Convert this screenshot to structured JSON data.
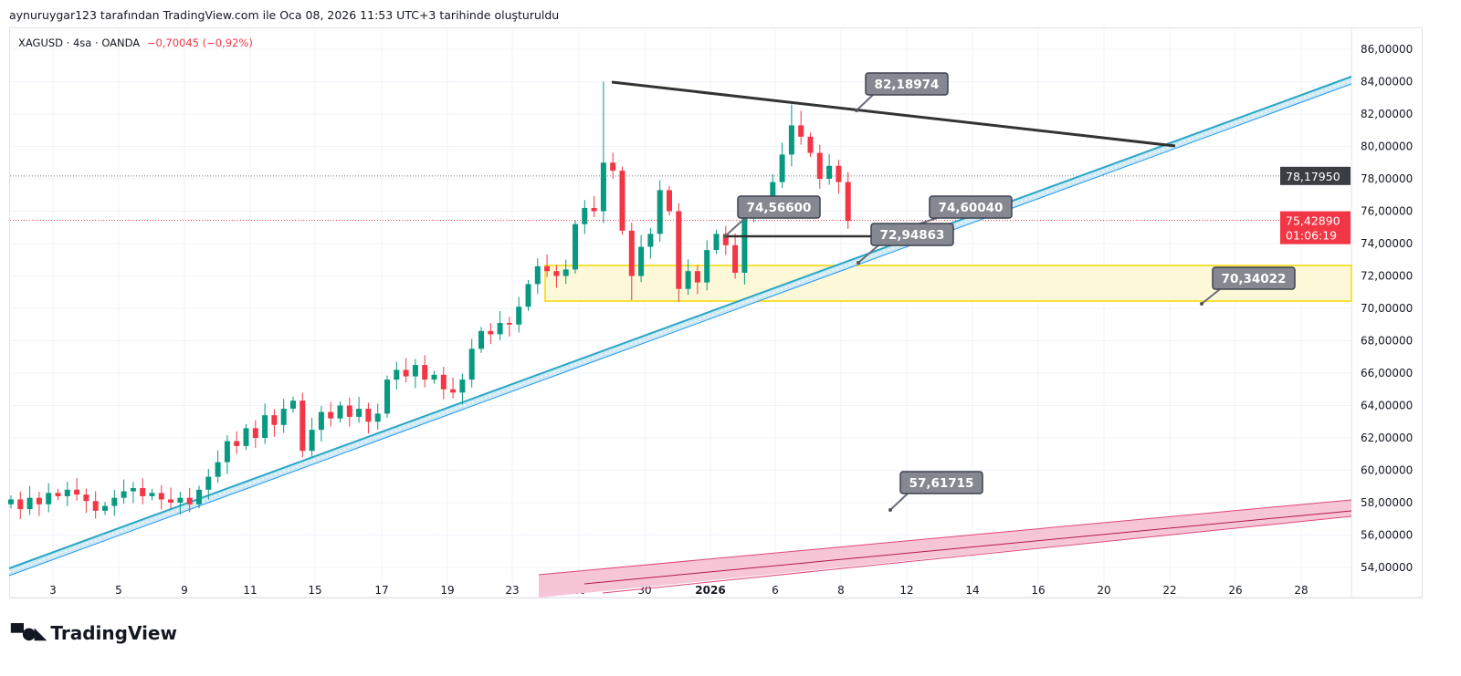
{
  "credit": "aynuruygar123 tarafından TradingView.com ile Oca 08, 2026 11:53 UTC+3 tarihinde oluşturuldu",
  "legend": {
    "symbol": "XAGUSD · 4sa · OANDA",
    "change": "−0,70045 (−0,92%)"
  },
  "brand": "TradingView",
  "colors": {
    "up": "#089981",
    "down": "#f23645",
    "trend": "#2aa6c7",
    "pink": "#e0457b",
    "zone": "#f7e13a"
  },
  "price_axis": {
    "ticks": [
      "86,00000",
      "84,00000",
      "82,00000",
      "80,00000",
      "78,00000",
      "76,00000",
      "74,00000",
      "72,00000",
      "70,00000",
      "68,00000",
      "66,00000",
      "64,00000",
      "62,00000",
      "60,00000",
      "58,00000",
      "56,00000",
      "54,00000"
    ],
    "marker_prev": "78,17950",
    "marker_last": "75,42890",
    "countdown": "01:06:19"
  },
  "time_axis": [
    "3",
    "5",
    "9",
    "11",
    "15",
    "17",
    "19",
    "23",
    "26",
    "30",
    "2026",
    "6",
    "8",
    "12",
    "14",
    "16",
    "20",
    "22",
    "26",
    "28"
  ],
  "callouts": [
    "82,18974",
    "74,56600",
    "74,60040",
    "72,94863",
    "70,34022",
    "57,61715"
  ],
  "chart_data": {
    "type": "candlestick",
    "ylim": [
      53,
      87
    ],
    "closes": [
      58.2,
      57.6,
      58.3,
      57.9,
      58.6,
      58.4,
      58.8,
      58.5,
      58.1,
      57.5,
      57.8,
      58.3,
      58.7,
      58.9,
      58.4,
      58.6,
      58.2,
      58.0,
      58.3,
      57.9,
      58.8,
      59.6,
      60.5,
      61.8,
      61.5,
      62.6,
      62.0,
      63.4,
      62.8,
      63.8,
      64.3,
      61.2,
      62.5,
      63.6,
      63.2,
      64.0,
      63.3,
      63.8,
      63.0,
      63.5,
      65.6,
      66.2,
      65.8,
      66.5,
      65.6,
      65.9,
      65.0,
      64.8,
      65.6,
      67.5,
      68.6,
      68.4,
      69.1,
      69.0,
      70.1,
      71.5,
      72.6,
      72.3,
      72.0,
      72.4,
      75.2,
      76.2,
      76.0,
      79.0,
      78.5,
      74.8,
      72.0,
      73.8,
      74.6,
      77.3,
      76.0,
      71.2,
      72.3,
      71.6,
      73.6,
      74.6,
      73.9,
      72.2,
      75.8,
      76.0,
      76.2,
      77.8,
      79.5,
      81.3,
      80.6,
      79.6,
      78.0,
      78.8,
      77.8,
      75.4
    ],
    "high_overrides": {
      "63": 84.0,
      "83": 82.6,
      "84": 82.2
    },
    "low_overrides": {
      "31": 60.8,
      "66": 70.5,
      "71": 70.4
    }
  }
}
